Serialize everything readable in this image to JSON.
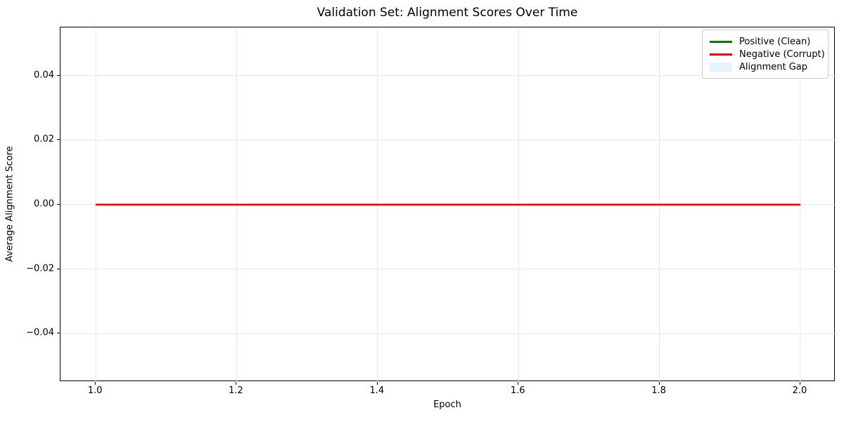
{
  "figure": {
    "title": "Validation Set: Alignment Scores Over Time"
  },
  "chart_data": {
    "type": "line",
    "title": "Validation Set: Alignment Scores Over Time",
    "xlabel": "Epoch",
    "ylabel": "Average Alignment Score",
    "x": [
      1.0,
      2.0
    ],
    "series": [
      {
        "name": "Positive (Clean)",
        "color": "#008000",
        "linewidth": 2.5,
        "values": [
          0.0,
          0.0
        ]
      },
      {
        "name": "Negative (Corrupt)",
        "color": "#ff0000",
        "linewidth": 2.5,
        "values": [
          0.0,
          0.0
        ]
      }
    ],
    "fill_between": {
      "name": "Alignment Gap",
      "color": "#e6f3f8",
      "between_series": [
        "Positive (Clean)",
        "Negative (Corrupt)"
      ]
    },
    "xlim": [
      0.95,
      2.05
    ],
    "ylim": [
      -0.055,
      0.055
    ],
    "xticks": [
      1.0,
      1.2,
      1.4,
      1.6,
      1.8,
      2.0
    ],
    "yticks": [
      0.04,
      0.02,
      0.0,
      -0.02,
      -0.04
    ],
    "grid": true,
    "grid_color": "#e7e7e7",
    "axes_background": "#ffffff",
    "legend": {
      "position": "upper right",
      "entries": [
        {
          "label": "Positive (Clean)",
          "color": "#008000",
          "type": "line"
        },
        {
          "label": "Negative (Corrupt)",
          "color": "#ff0000",
          "type": "line"
        },
        {
          "label": "Alignment Gap",
          "color": "#e6f3f8",
          "type": "patch"
        }
      ]
    }
  }
}
